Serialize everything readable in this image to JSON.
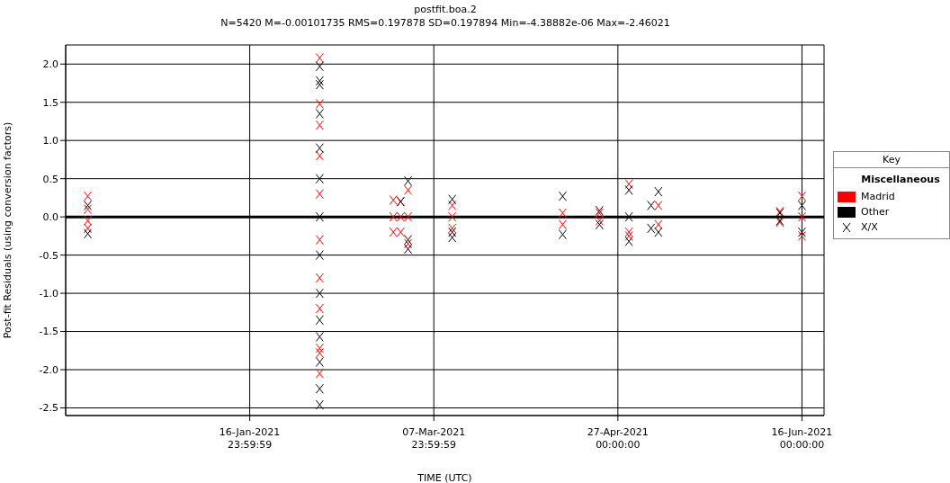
{
  "chart_data": {
    "type": "scatter",
    "title": "postfit.boa.2",
    "subtitle": "N=5420  M=-0.00101735  RMS=0.197878  SD=0.197894  Min=-4.38882e-06  Max=-2.46021",
    "xlabel": "TIME (UTC)",
    "ylabel": "Post-fit Residuals (using conversion factors)",
    "legend_title": "Key",
    "annotations": [
      "Miscellaneous",
      "X/X"
    ],
    "xlim": [
      "2020-11-28",
      "2021-06-22"
    ],
    "xticks": [
      {
        "value": "2021-01-16T23:59",
        "label": "16-Jan-2021\n23:59:59"
      },
      {
        "value": "2021-03-07T23:59",
        "label": "07-Mar-2021\n23:59:59"
      },
      {
        "value": "2021-04-27",
        "label": "27-Apr-2021\n00:00:00"
      },
      {
        "value": "2021-06-16",
        "label": "16-Jun-2021\n00:00:00"
      }
    ],
    "ylim": [
      -2.6,
      2.25
    ],
    "yticks": [
      {
        "value": -2.5,
        "label": "-2.5"
      },
      {
        "value": -2,
        "label": "-2.0"
      },
      {
        "value": -1.5,
        "label": "-1.5"
      },
      {
        "value": -1,
        "label": "-1.0"
      },
      {
        "value": -0.5,
        "label": "-0.5"
      },
      {
        "value": 0,
        "label": "0.0"
      },
      {
        "value": 0.5,
        "label": "0.5"
      },
      {
        "value": 1,
        "label": "1.0"
      },
      {
        "value": 1.5,
        "label": "1.5"
      },
      {
        "value": 2,
        "label": "2.0"
      }
    ],
    "grid": true,
    "legend": "right",
    "marker": "cross",
    "ref_lines": [
      {
        "axis": "y",
        "value": 0,
        "color": "#000000"
      }
    ],
    "series": [
      {
        "name": "Madrid",
        "color": "#ff0000",
        "x": [
          "2020-12-04",
          "2020-12-04",
          "2020-12-04",
          "2020-12-04",
          "2021-02-05",
          "2021-02-05",
          "2021-02-05",
          "2021-02-05",
          "2021-02-05",
          "2021-02-05",
          "2021-02-05",
          "2021-02-05",
          "2021-02-05",
          "2021-02-05",
          "2021-02-05",
          "2021-02-25",
          "2021-02-25",
          "2021-02-25",
          "2021-02-27",
          "2021-02-27",
          "2021-02-27",
          "2021-03-01",
          "2021-03-01",
          "2021-03-01",
          "2021-03-13",
          "2021-03-13",
          "2021-03-13",
          "2021-04-12",
          "2021-04-12",
          "2021-04-22",
          "2021-04-22",
          "2021-04-30",
          "2021-04-30",
          "2021-04-30",
          "2021-05-08",
          "2021-05-08",
          "2021-06-10",
          "2021-06-10",
          "2021-06-16",
          "2021-06-16",
          "2021-06-16"
        ],
        "values": [
          0.27,
          0.1,
          -0.05,
          -0.15,
          2.08,
          1.48,
          1.2,
          0.8,
          0.3,
          -0.3,
          -0.8,
          -1.2,
          -1.72,
          -1.78,
          -2.05,
          0.22,
          0,
          -0.2,
          0.2,
          0,
          -0.2,
          0.35,
          0,
          -0.35,
          0.15,
          0,
          -0.15,
          0.05,
          -0.1,
          0.05,
          -0.05,
          0.43,
          -0.2,
          -0.25,
          0.15,
          -0.1,
          0.07,
          -0.07,
          0.27,
          0,
          -0.25
        ]
      },
      {
        "name": "Other",
        "color": "#000000",
        "x": [
          "2020-12-04",
          "2020-12-04",
          "2021-02-05",
          "2021-02-05",
          "2021-02-05",
          "2021-02-05",
          "2021-02-05",
          "2021-02-05",
          "2021-02-05",
          "2021-02-05",
          "2021-02-05",
          "2021-02-05",
          "2021-02-05",
          "2021-02-05",
          "2021-02-05",
          "2021-02-05",
          "2021-02-27",
          "2021-03-01",
          "2021-03-01",
          "2021-03-01",
          "2021-03-13",
          "2021-03-13",
          "2021-03-13",
          "2021-04-12",
          "2021-04-12",
          "2021-04-22",
          "2021-04-22",
          "2021-04-30",
          "2021-04-30",
          "2021-04-30",
          "2021-05-06",
          "2021-05-06",
          "2021-05-08",
          "2021-05-08",
          "2021-06-10",
          "2021-06-10",
          "2021-06-16",
          "2021-06-16"
        ],
        "values": [
          0.15,
          -0.22,
          1.97,
          1.78,
          1.73,
          1.35,
          0.9,
          0.5,
          0,
          -0.5,
          -1.0,
          -1.35,
          -1.57,
          -1.9,
          -2.25,
          -2.46,
          0.2,
          0.47,
          -0.3,
          -0.42,
          0.23,
          -0.2,
          -0.27,
          0.27,
          -0.23,
          0.08,
          -0.1,
          0.35,
          0,
          -0.32,
          0.15,
          -0.15,
          0.33,
          -0.2,
          0.05,
          -0.05,
          0.15,
          -0.2
        ]
      }
    ]
  }
}
